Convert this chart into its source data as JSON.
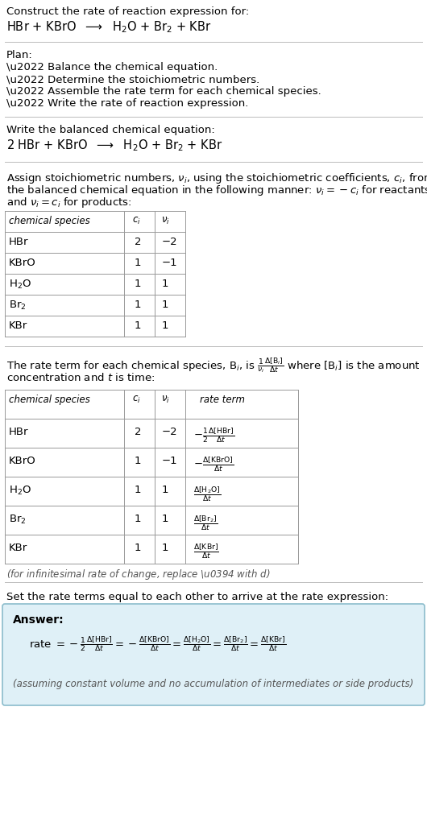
{
  "bg_color": "#ffffff",
  "text_color": "#000000",
  "section1_line1": "Construct the rate of reaction expression for:",
  "section1_line2": "HBr + KBrO  $\\longrightarrow$  H$_2$O + Br$_2$ + KBr",
  "plan_header": "Plan:",
  "plan_items": [
    "\\u2022 Balance the chemical equation.",
    "\\u2022 Determine the stoichiometric numbers.",
    "\\u2022 Assemble the rate term for each chemical species.",
    "\\u2022 Write the rate of reaction expression."
  ],
  "balanced_header": "Write the balanced chemical equation:",
  "balanced_eq": "2 HBr + KBrO  $\\longrightarrow$  H$_2$O + Br$_2$ + KBr",
  "assign_lines": [
    "Assign stoichiometric numbers, $\\nu_i$, using the stoichiometric coefficients, $c_i$, from",
    "the balanced chemical equation in the following manner: $\\nu_i = -c_i$ for reactants",
    "and $\\nu_i = c_i$ for products:"
  ],
  "table1_col_headers": [
    "chemical species",
    "$c_i$",
    "$\\nu_i$"
  ],
  "table1_rows": [
    [
      "HBr",
      "2",
      "-2"
    ],
    [
      "KBrO",
      "1",
      "-1"
    ],
    [
      "H$_2$O",
      "1",
      "1"
    ],
    [
      "Br$_2$",
      "1",
      "1"
    ],
    [
      "KBr",
      "1",
      "1"
    ]
  ],
  "rate_lines": [
    "The rate term for each chemical species, B$_i$, is $\\frac{1}{\\nu_i}\\frac{\\Delta[\\mathrm{B}_i]}{\\Delta t}$ where [B$_i$] is the amount",
    "concentration and $t$ is time:"
  ],
  "table2_col_headers": [
    "chemical species",
    "$c_i$",
    "$\\nu_i$",
    "rate term"
  ],
  "table2_rows": [
    [
      "HBr",
      "2",
      "-2",
      "$-\\frac{1}{2}\\frac{\\Delta[\\mathrm{HBr}]}{\\Delta t}$"
    ],
    [
      "KBrO",
      "1",
      "-1",
      "$-\\frac{\\Delta[\\mathrm{KBrO}]}{\\Delta t}$"
    ],
    [
      "H$_2$O",
      "1",
      "1",
      "$\\frac{\\Delta[\\mathrm{H_2O}]}{\\Delta t}$"
    ],
    [
      "Br$_2$",
      "1",
      "1",
      "$\\frac{\\Delta[\\mathrm{Br_2}]}{\\Delta t}$"
    ],
    [
      "KBr",
      "1",
      "1",
      "$\\frac{\\Delta[\\mathrm{KBr}]}{\\Delta t}$"
    ]
  ],
  "infinitesimal_note": "(for infinitesimal rate of change, replace \\u0394 with $d$)",
  "set_equal_text": "Set the rate terms equal to each other to arrive at the rate expression:",
  "answer_label": "Answer:",
  "rate_expr": "rate $= -\\frac{1}{2}\\frac{\\Delta[\\mathrm{HBr}]}{\\Delta t} = -\\frac{\\Delta[\\mathrm{KBrO}]}{\\Delta t} = \\frac{\\Delta[\\mathrm{H_2O}]}{\\Delta t} = \\frac{\\Delta[\\mathrm{Br_2}]}{\\Delta t} = \\frac{\\Delta[\\mathrm{KBr}]}{\\Delta t}$",
  "assuming_note": "(assuming constant volume and no accumulation of intermediates or side products)",
  "answer_bg": "#dff0f7",
  "answer_border": "#8bbccc",
  "hline_color": "#bbbbbb",
  "table_line_color": "#999999",
  "note_color": "#555555"
}
